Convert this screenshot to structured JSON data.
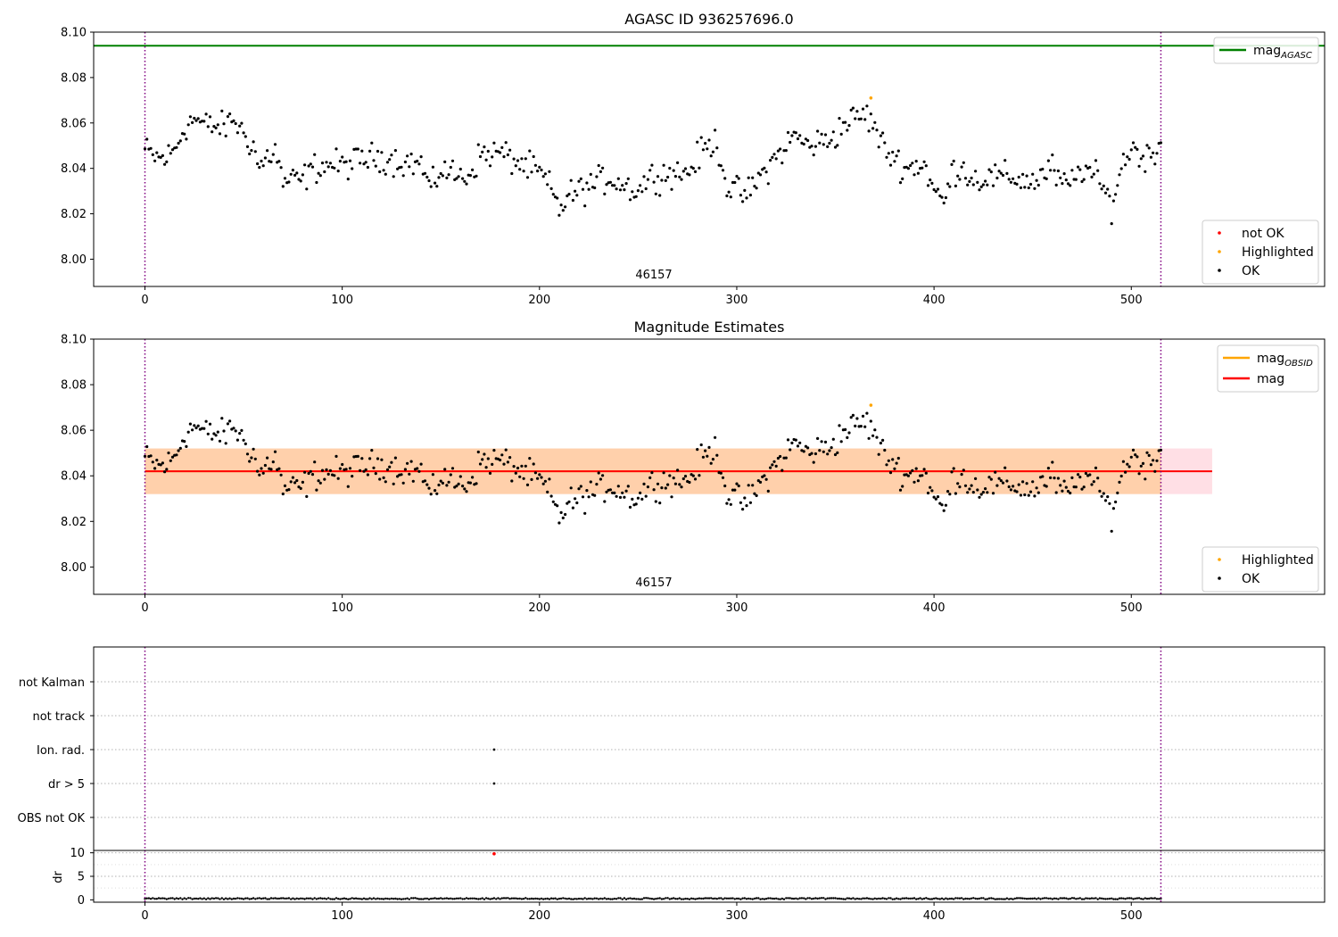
{
  "chart_data": [
    {
      "type": "scatter",
      "title": "AGASC ID 936257696.0",
      "annotation": "46157",
      "xlim": [
        -26,
        598
      ],
      "ylim": [
        7.988,
        8.1
      ],
      "xticks": [
        0,
        100,
        200,
        300,
        400,
        500
      ],
      "yticks": [
        8.0,
        8.02,
        8.04,
        8.06,
        8.08,
        8.1
      ],
      "ytick_labels": [
        "8.00",
        "8.02",
        "8.04",
        "8.06",
        "8.08",
        "8.10"
      ],
      "obs_boundaries": [
        0,
        515
      ],
      "mag_agasc": 8.094,
      "legend_lines": [
        {
          "label": "mag",
          "sub": "AGASC",
          "color": "#008000"
        }
      ],
      "legend_points": [
        {
          "label": "not OK",
          "color": "#ff0000"
        },
        {
          "label": "Highlighted",
          "color": "#ffa500"
        },
        {
          "label": "OK",
          "color": "#000000"
        }
      ],
      "highlighted": [
        {
          "x": 368,
          "y": 8.071
        }
      ],
      "series": [
        {
          "name": "OK",
          "color": "#000000",
          "n": 516,
          "anchors": [
            [
              0,
              8.048
            ],
            [
              5,
              8.045
            ],
            [
              10,
              8.044
            ],
            [
              15,
              8.048
            ],
            [
              20,
              8.058
            ],
            [
              25,
              8.062
            ],
            [
              30,
              8.059
            ],
            [
              40,
              8.058
            ],
            [
              45,
              8.062
            ],
            [
              50,
              8.055
            ],
            [
              55,
              8.05
            ],
            [
              58,
              8.04
            ],
            [
              62,
              8.045
            ],
            [
              66,
              8.048
            ],
            [
              70,
              8.034
            ],
            [
              80,
              8.035
            ],
            [
              85,
              8.04
            ],
            [
              95,
              8.042
            ],
            [
              100,
              8.041
            ],
            [
              110,
              8.044
            ],
            [
              120,
              8.045
            ],
            [
              130,
              8.043
            ],
            [
              140,
              8.042
            ],
            [
              145,
              8.03
            ],
            [
              150,
              8.04
            ],
            [
              160,
              8.036
            ],
            [
              165,
              8.038
            ],
            [
              170,
              8.046
            ],
            [
              180,
              8.047
            ],
            [
              190,
              8.042
            ],
            [
              200,
              8.038
            ],
            [
              205,
              8.032
            ],
            [
              210,
              8.022
            ],
            [
              215,
              8.028
            ],
            [
              225,
              8.032
            ],
            [
              235,
              8.036
            ],
            [
              245,
              8.032
            ],
            [
              250,
              8.03
            ],
            [
              255,
              8.036
            ],
            [
              265,
              8.038
            ],
            [
              275,
              8.038
            ],
            [
              283,
              8.048
            ],
            [
              290,
              8.052
            ],
            [
              295,
              8.032
            ],
            [
              300,
              8.03
            ],
            [
              305,
              8.028
            ],
            [
              310,
              8.034
            ],
            [
              320,
              8.045
            ],
            [
              330,
              8.055
            ],
            [
              335,
              8.05
            ],
            [
              345,
              8.052
            ],
            [
              350,
              8.055
            ],
            [
              355,
              8.06
            ],
            [
              360,
              8.062
            ],
            [
              365,
              8.064
            ],
            [
              370,
              8.058
            ],
            [
              375,
              8.048
            ],
            [
              380,
              8.045
            ],
            [
              385,
              8.04
            ],
            [
              395,
              8.042
            ],
            [
              400,
              8.03
            ],
            [
              405,
              8.025
            ],
            [
              410,
              8.04
            ],
            [
              415,
              8.04
            ],
            [
              420,
              8.035
            ],
            [
              430,
              8.036
            ],
            [
              440,
              8.036
            ],
            [
              450,
              8.034
            ],
            [
              460,
              8.04
            ],
            [
              465,
              8.032
            ],
            [
              470,
              8.034
            ],
            [
              475,
              8.04
            ],
            [
              480,
              8.038
            ],
            [
              485,
              8.032
            ],
            [
              490,
              8.024
            ],
            [
              495,
              8.04
            ],
            [
              500,
              8.05
            ],
            [
              505,
              8.045
            ],
            [
              510,
              8.046
            ],
            [
              515,
              8.052
            ]
          ],
          "noise": 0.004
        }
      ]
    },
    {
      "type": "scatter",
      "title": "Magnitude Estimates",
      "annotation": "46157",
      "xlim": [
        -26,
        598
      ],
      "ylim": [
        7.988,
        8.1
      ],
      "xticks": [
        0,
        100,
        200,
        300,
        400,
        500
      ],
      "yticks": [
        8.0,
        8.02,
        8.04,
        8.06,
        8.08,
        8.1
      ],
      "ytick_labels": [
        "8.00",
        "8.02",
        "8.04",
        "8.06",
        "8.08",
        "8.10"
      ],
      "obs_boundaries": [
        0,
        515
      ],
      "mag_mean": 8.042,
      "mag_band": [
        8.032,
        8.052
      ],
      "mag_band_x": [
        0,
        541
      ],
      "mag_obsid_band_x": [
        0,
        515
      ],
      "legend_lines": [
        {
          "label": "mag",
          "sub": "OBSID",
          "color": "#ffa500"
        },
        {
          "label": "mag",
          "sub": "",
          "color": "#ff0000"
        }
      ],
      "legend_points": [
        {
          "label": "Highlighted",
          "color": "#ffa500"
        },
        {
          "label": "OK",
          "color": "#000000"
        }
      ],
      "highlighted": [
        {
          "x": 368,
          "y": 8.071
        }
      ]
    },
    {
      "type": "scatter",
      "categories": [
        "not Kalman",
        "not track",
        "Ion. rad.",
        "dr > 5",
        "OBS not OK"
      ],
      "xlim": [
        -26,
        598
      ],
      "obs_boundaries": [
        0,
        515
      ],
      "flags": [
        {
          "category": "Ion. rad.",
          "x": 177
        },
        {
          "category": "dr > 5",
          "x": 177
        }
      ]
    },
    {
      "type": "scatter",
      "ylabel": "dr",
      "xlim": [
        -26,
        598
      ],
      "ylim": [
        -0.5,
        10.5
      ],
      "xticks": [
        0,
        100,
        200,
        300,
        400,
        500
      ],
      "yticks": [
        0,
        5,
        10
      ],
      "obs_boundaries": [
        0,
        515
      ],
      "outliers": [
        {
          "x": 177,
          "y": 9.8,
          "color": "#ff0000"
        }
      ],
      "typical_dr": 0.3
    }
  ]
}
